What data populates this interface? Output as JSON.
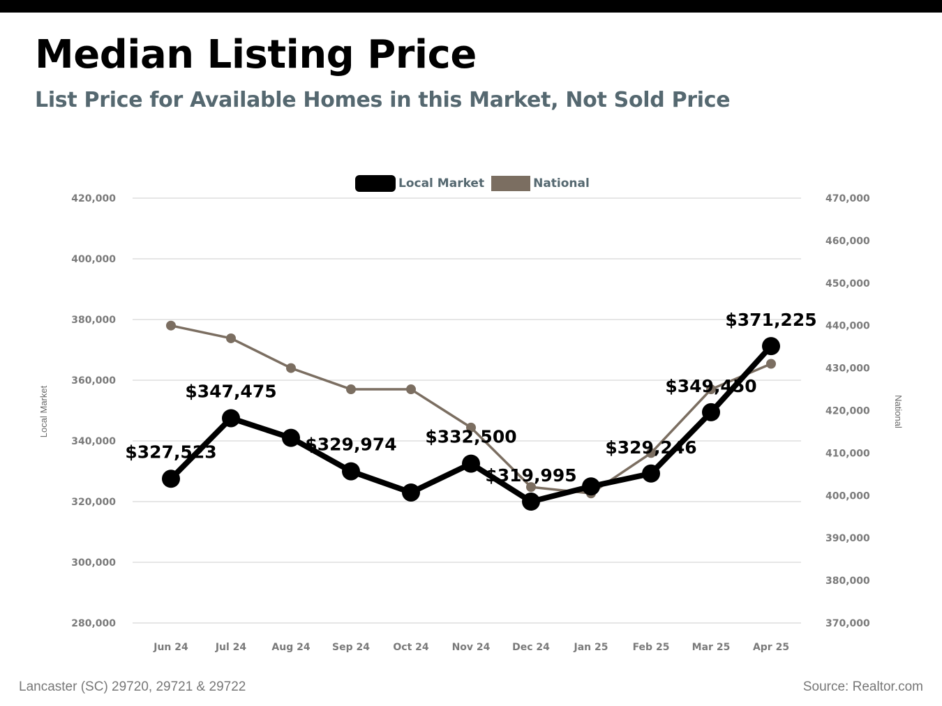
{
  "header": {
    "title": "Median Listing Price",
    "subtitle": "List Price for Available Homes in this Market, Not Sold Price"
  },
  "footer": {
    "location": "Lancaster (SC) 29720, 29721 & 29722",
    "source": "Source: Realtor.com"
  },
  "legend": {
    "local": "Local Market",
    "national": "National"
  },
  "colors": {
    "local": "#000000",
    "national": "#7b6e61",
    "grid": "#cccccc",
    "axis_text": "#7a7a7a"
  },
  "chart_data": {
    "type": "line",
    "categories": [
      "Jun 24",
      "Jul 24",
      "Aug 24",
      "Sep 24",
      "Oct 24",
      "Nov 24",
      "Dec 24",
      "Jan 25",
      "Feb 25",
      "Mar 25",
      "Apr 25"
    ],
    "series": [
      {
        "name": "Local Market",
        "axis": "left",
        "values": [
          327523,
          347475,
          341000,
          329974,
          323000,
          332500,
          319995,
          325000,
          329246,
          349450,
          371225
        ],
        "data_labels": [
          "$327,523",
          "$347,475",
          "",
          "$329,974",
          "",
          "$332,500",
          "$319,995",
          "",
          "$329,246",
          "$349,450",
          "$371,225"
        ]
      },
      {
        "name": "National",
        "axis": "right",
        "values": [
          440000,
          437000,
          430000,
          425000,
          425000,
          416000,
          402000,
          400500,
          410000,
          425000,
          431000
        ]
      }
    ],
    "ylabel": "Local Market",
    "ylabel_right": "National",
    "ylim": [
      280000,
      420000
    ],
    "ylim_right": [
      370000,
      470000
    ],
    "yticks": [
      280000,
      300000,
      320000,
      340000,
      360000,
      380000,
      400000,
      420000
    ],
    "yticks_right": [
      370000,
      380000,
      390000,
      400000,
      410000,
      420000,
      430000,
      440000,
      450000,
      460000,
      470000
    ],
    "grid": true,
    "legend_position": "top-center"
  }
}
